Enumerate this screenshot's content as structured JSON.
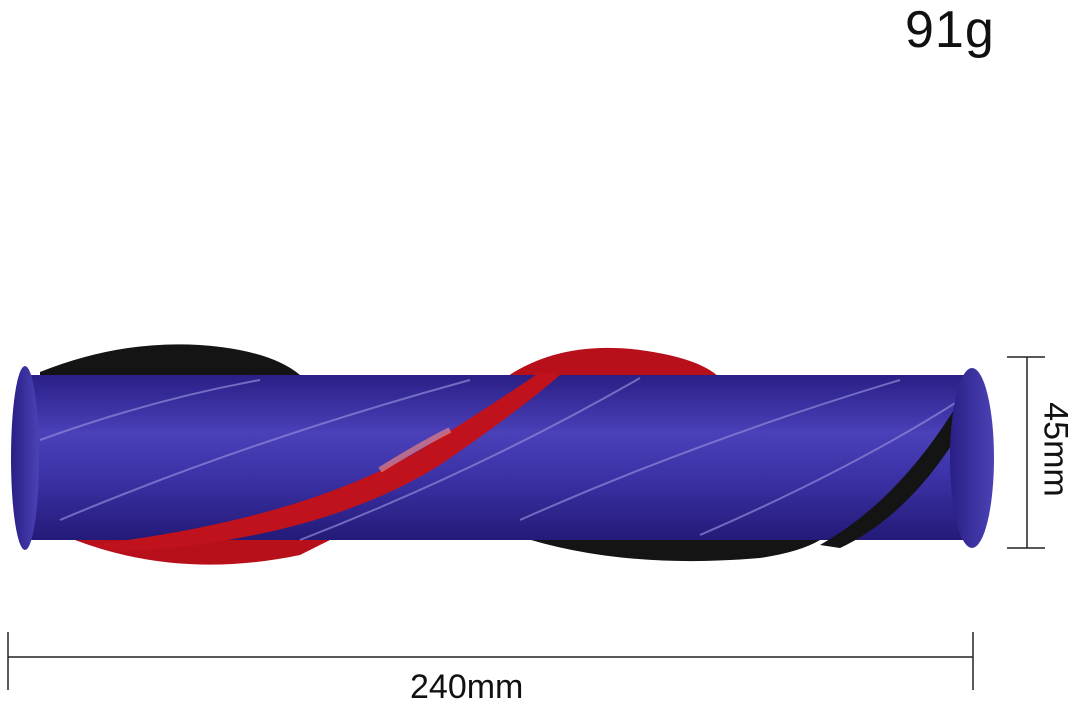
{
  "product": {
    "weight_label": "91g",
    "length_label": "240mm",
    "diameter_label": "45mm",
    "colors": {
      "body": "#3b2fa6",
      "red_bristles": "#c0121c",
      "black_bristles": "#141414",
      "background": "#ffffff"
    }
  }
}
